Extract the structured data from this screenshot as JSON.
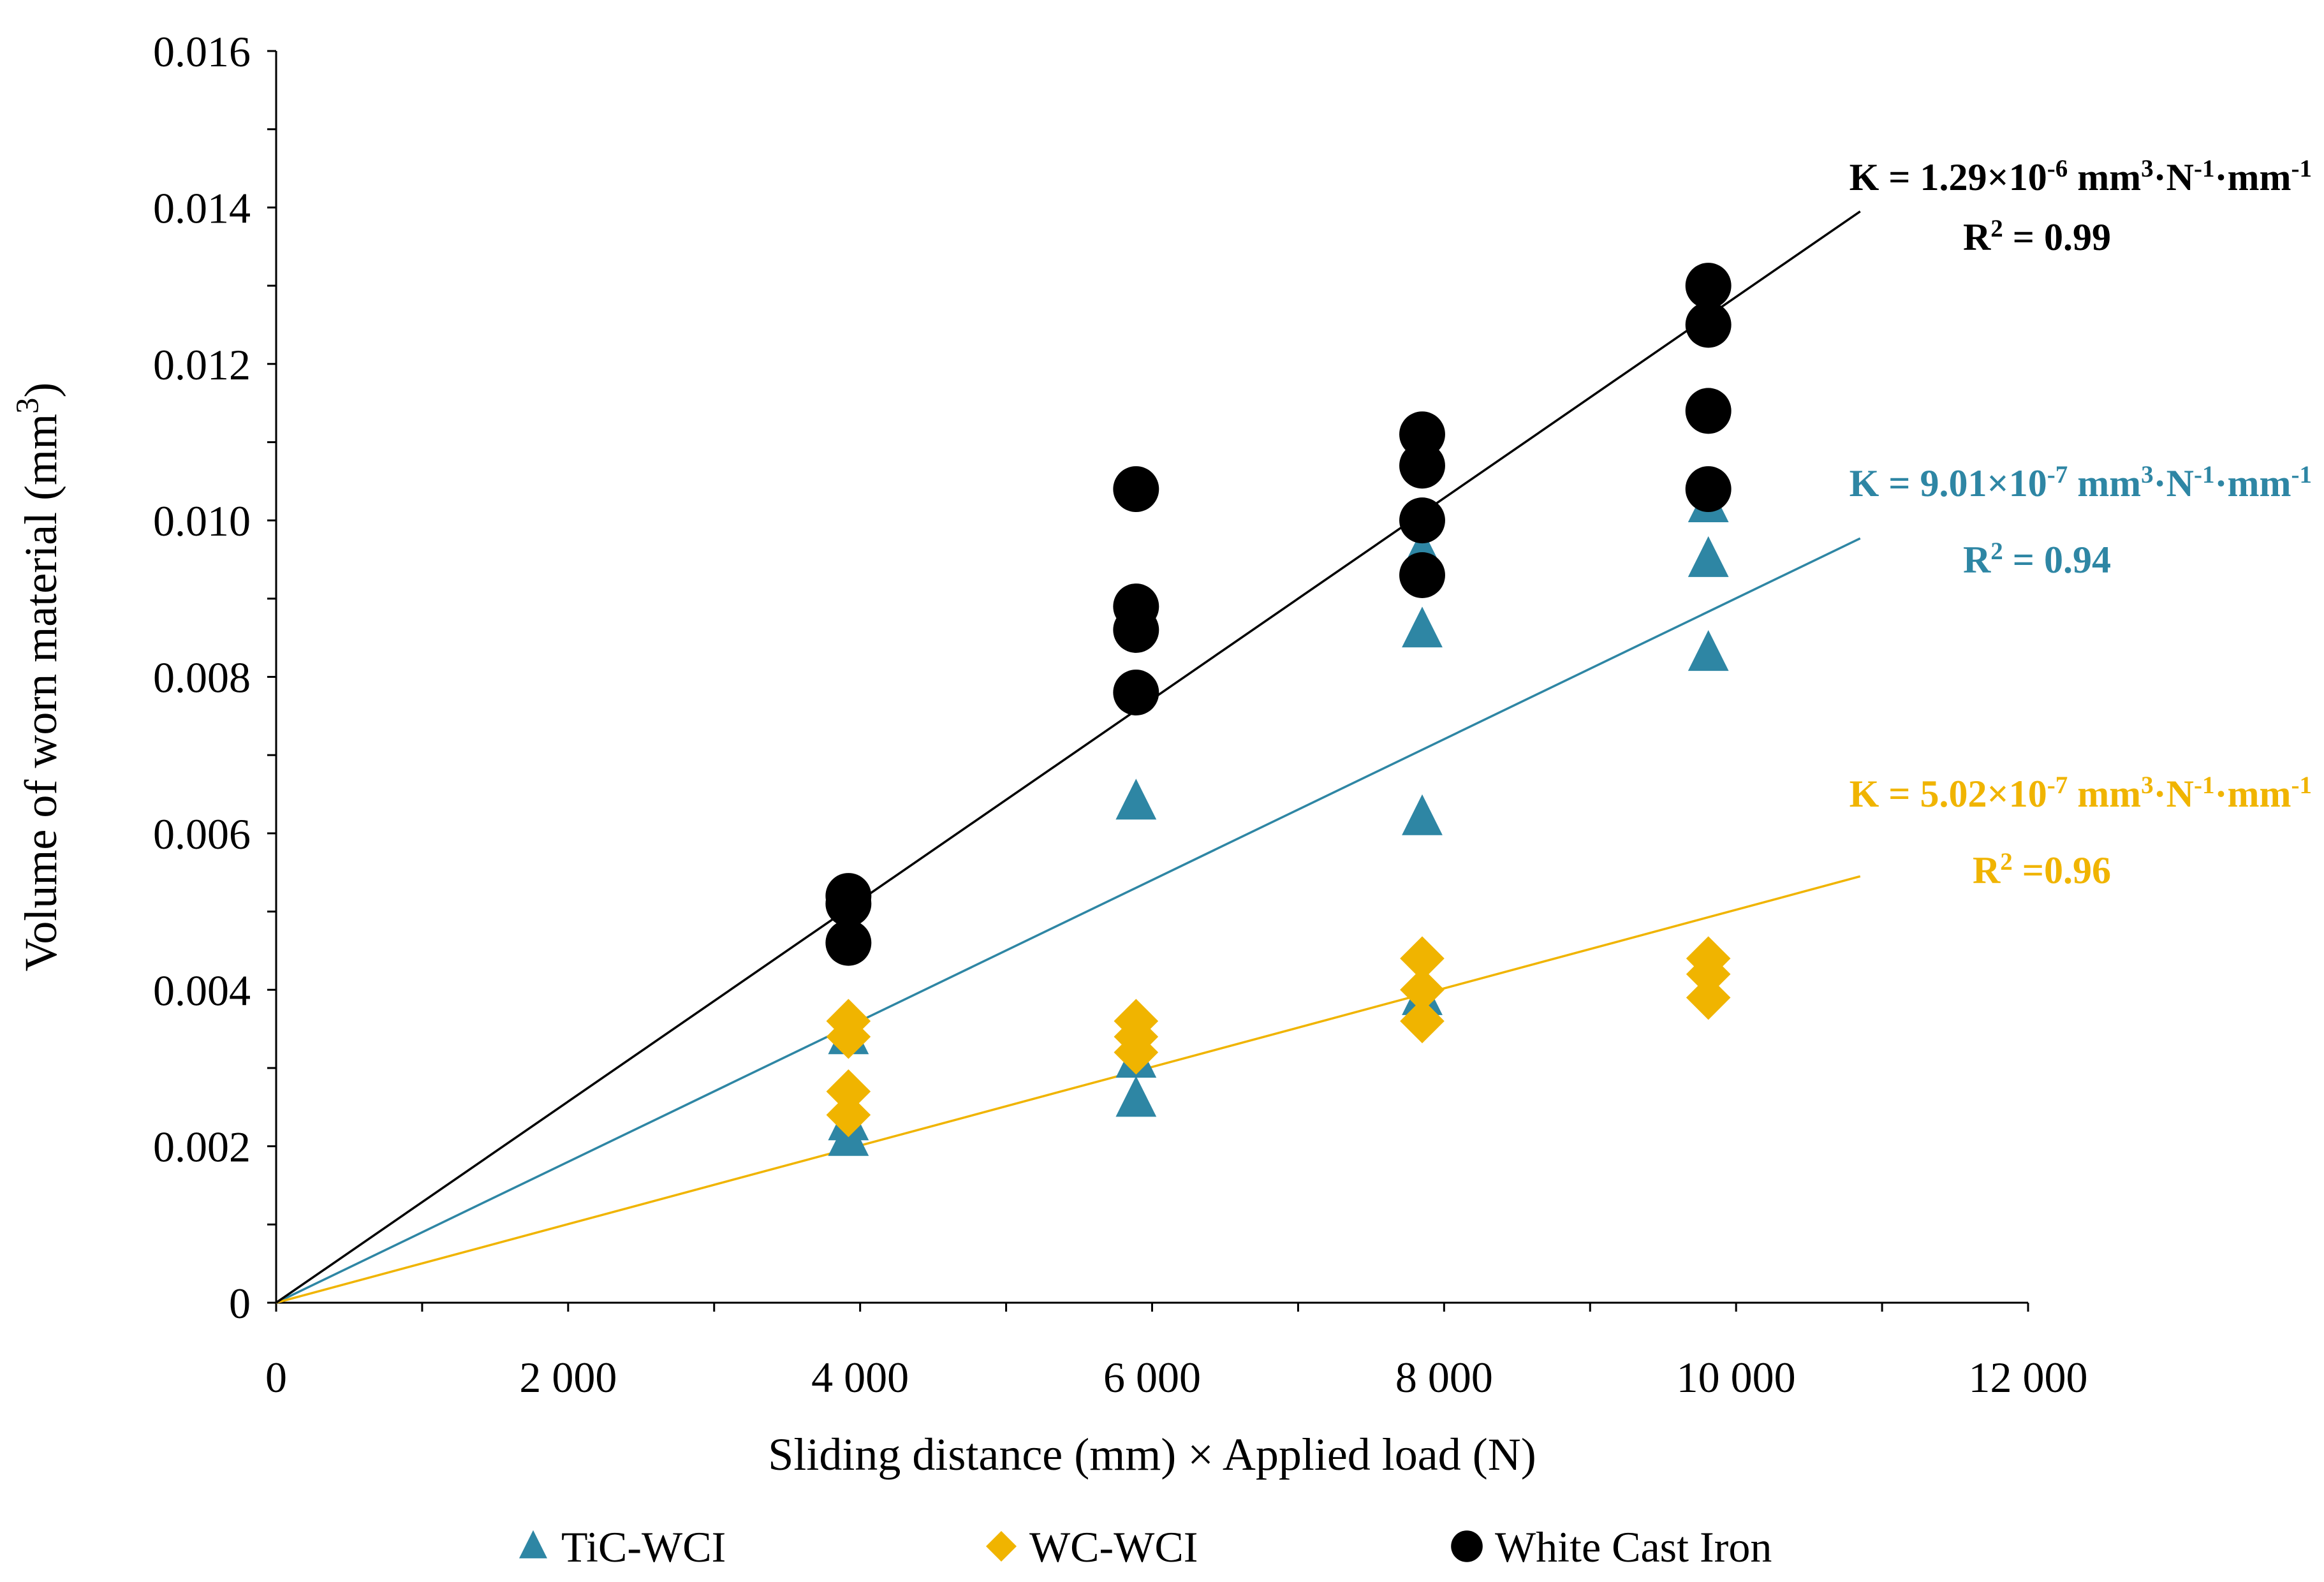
{
  "chart_data": {
    "type": "scatter",
    "title": "",
    "xlabel": "Sliding distance (mm) × Applied load (N)",
    "ylabel_main": "Volume of worn material (mm",
    "ylabel_sup": "3",
    "ylabel_close": ")",
    "xlim": [
      0,
      12000
    ],
    "ylim": [
      0,
      0.016
    ],
    "x_ticks": [
      0,
      2000,
      4000,
      6000,
      8000,
      10000,
      12000
    ],
    "x_tick_labels": [
      "0",
      "2 000",
      "4 000",
      "6 000",
      "8 000",
      "10 000",
      "12 000"
    ],
    "y_ticks": [
      0,
      0.002,
      0.004,
      0.006,
      0.008,
      0.01,
      0.012,
      0.014,
      0.016
    ],
    "y_tick_labels": [
      "0",
      "0.002",
      "0.004",
      "0.006",
      "0.008",
      "0.010",
      "0.012",
      "0.014",
      "0.016"
    ],
    "grid": false,
    "legend_position": "bottom",
    "series": [
      {
        "name": "TiC-WCI",
        "marker": "triangle",
        "color": "#2E86A4",
        "points": [
          [
            3920,
            0.0034
          ],
          [
            3920,
            0.0023
          ],
          [
            3920,
            0.0021
          ],
          [
            5890,
            0.0064
          ],
          [
            5890,
            0.0031
          ],
          [
            5890,
            0.0026
          ],
          [
            7850,
            0.0096
          ],
          [
            7850,
            0.0086
          ],
          [
            7850,
            0.0062
          ],
          [
            7850,
            0.0039
          ],
          [
            9810,
            0.0102
          ],
          [
            9810,
            0.0095
          ],
          [
            9810,
            0.0083
          ]
        ],
        "trendline": {
          "x_end": 10850,
          "y_end": 0.00977
        },
        "annotation": {
          "k_prefix": "K = 9.01×10",
          "k_exp": "-7",
          "unit_a": " mm",
          "unit_a_sup": "3",
          "unit_b": "·N",
          "unit_b_sup": "-1",
          "unit_c": "·mm",
          "unit_c_sup": "-1",
          "r2_prefix": "R",
          "r2_sup": "2",
          "r2_value": " = 0.94"
        }
      },
      {
        "name": "WC-WCI",
        "marker": "diamond",
        "color": "#F0B400",
        "points": [
          [
            3920,
            0.0036
          ],
          [
            3920,
            0.0034
          ],
          [
            3920,
            0.0027
          ],
          [
            3920,
            0.0024
          ],
          [
            5890,
            0.0036
          ],
          [
            5890,
            0.0034
          ],
          [
            5890,
            0.0032
          ],
          [
            7850,
            0.0044
          ],
          [
            7850,
            0.004
          ],
          [
            7850,
            0.0036
          ],
          [
            9810,
            0.0044
          ],
          [
            9810,
            0.0042
          ],
          [
            9810,
            0.0039
          ]
        ],
        "trendline": {
          "x_end": 10850,
          "y_end": 0.00545
        },
        "annotation": {
          "k_prefix": "K = 5.02×10",
          "k_exp": "-7",
          "unit_a": " mm",
          "unit_a_sup": "3",
          "unit_b": "·N",
          "unit_b_sup": "-1",
          "unit_c": "·mm",
          "unit_c_sup": "-1",
          "r2_prefix": "R",
          "r2_sup": "2",
          "r2_value": " =0.96"
        }
      },
      {
        "name": "White Cast Iron",
        "marker": "circle",
        "color": "#000000",
        "points": [
          [
            3920,
            0.0052
          ],
          [
            3920,
            0.0051
          ],
          [
            3920,
            0.0046
          ],
          [
            5890,
            0.0104
          ],
          [
            5890,
            0.0089
          ],
          [
            5890,
            0.0086
          ],
          [
            5890,
            0.0078
          ],
          [
            7850,
            0.0111
          ],
          [
            7850,
            0.0107
          ],
          [
            7850,
            0.01
          ],
          [
            7850,
            0.0093
          ],
          [
            9810,
            0.013
          ],
          [
            9810,
            0.0125
          ],
          [
            9810,
            0.0114
          ],
          [
            9810,
            0.0104
          ]
        ],
        "trendline": {
          "x_end": 10850,
          "y_end": 0.01395
        },
        "annotation": {
          "k_prefix": "K = 1.29×10",
          "k_exp": "-6",
          "unit_a": " mm",
          "unit_a_sup": "3",
          "unit_b": "·N",
          "unit_b_sup": "-1",
          "unit_c": "·mm",
          "unit_c_sup": "-1",
          "r2_prefix": "R",
          "r2_sup": "2",
          "r2_value": " = 0.99"
        }
      }
    ]
  }
}
